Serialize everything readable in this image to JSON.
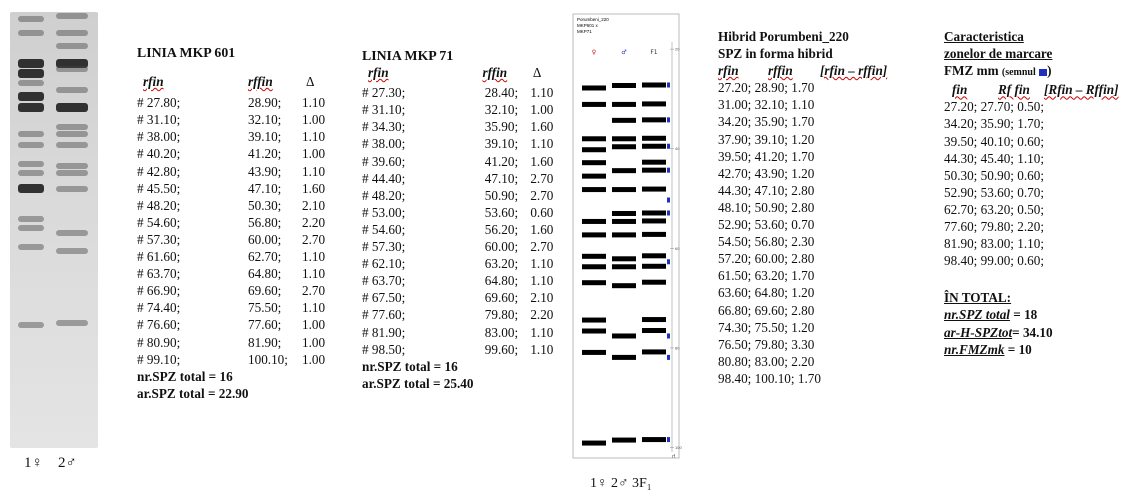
{
  "gel": {
    "lane_labels": [
      "1♀",
      "2♂"
    ]
  },
  "mkp601": {
    "title": "LINIA MKP 601",
    "headers": [
      "rfin",
      "rffin",
      "Δ"
    ],
    "rows": [
      [
        "# 27.80;",
        "28.90;",
        "1.10"
      ],
      [
        "# 31.10;",
        "32.10;",
        "1.00"
      ],
      [
        "# 38.00;",
        "39.10;",
        "1.10"
      ],
      [
        "# 40.20;",
        "41.20;",
        "1.00"
      ],
      [
        "# 42.80;",
        "43.90;",
        "1.10"
      ],
      [
        "# 45.50;",
        "47.10;",
        "1.60"
      ],
      [
        "# 48.20;",
        "50.30;",
        "2.10"
      ],
      [
        "# 54.60;",
        "56.80;",
        "2.20"
      ],
      [
        "# 57.30;",
        "60.00;",
        "2.70"
      ],
      [
        "# 61.60;",
        "62.70;",
        "1.10"
      ],
      [
        "# 63.70;",
        "64.80;",
        "1.10"
      ],
      [
        "# 66.90;",
        "69.60;",
        "2.70"
      ],
      [
        "# 74.40;",
        "75.50;",
        "1.10"
      ],
      [
        "# 76.60;",
        "77.60;",
        "1.00"
      ],
      [
        "# 80.90;",
        "81.90;",
        "1.00"
      ],
      [
        "# 99.10;",
        "100.10;",
        "1.00"
      ]
    ],
    "total1": "nr.SPZ total = 16",
    "total2": "ar.SPZ total = 22.90"
  },
  "mkp71": {
    "title": "LINIA  MKP 71",
    "headers": [
      "rfin",
      "rffin",
      "Δ"
    ],
    "rows": [
      [
        "# 27.30;",
        "28.40;",
        "1.10"
      ],
      [
        "# 31.10;",
        "32.10;",
        "1.00"
      ],
      [
        "# 34.30;",
        "35.90;",
        "1.60"
      ],
      [
        "# 38.00;",
        "39.10;",
        "1.10"
      ],
      [
        "# 39.60;",
        "41.20;",
        "1.60"
      ],
      [
        "# 44.40;",
        "47.10;",
        "2.70"
      ],
      [
        "# 48.20;",
        "50.90;",
        "2.70"
      ],
      [
        "# 53.00;",
        "53.60;",
        "0.60"
      ],
      [
        "# 54.60;",
        "56.20;",
        "1.60"
      ],
      [
        "# 57.30;",
        "60.00;",
        "2.70"
      ],
      [
        "# 62.10;",
        "63.20;",
        "1.10"
      ],
      [
        "# 63.70;",
        "64.80;",
        "1.10"
      ],
      [
        "# 67.50;",
        "69.60;",
        "2.10"
      ],
      [
        "# 77.60;",
        "79.80;",
        "2.20"
      ],
      [
        "# 81.90;",
        "83.00;",
        "1.10"
      ],
      [
        "# 98.50;",
        "99.60;",
        "1.10"
      ]
    ],
    "total1": "nr.SPZ total = 16",
    "total2": "ar.SPZ total = 25.40"
  },
  "diagram": {
    "title_lines": [
      "Porumbeni_220",
      "MKP601 x",
      "MKP71"
    ],
    "lane_marks": [
      "♀",
      "♂",
      "F1"
    ],
    "scale_ticks": [
      "20",
      "40",
      "60",
      "80",
      "100"
    ],
    "axis_label": "rf",
    "lane_labels": "1♀  2♂  3F₁",
    "lanes": [
      [
        27.8,
        31.1,
        38.0,
        40.2,
        42.8,
        45.5,
        48.2,
        54.6,
        57.3,
        61.6,
        63.7,
        66.9,
        74.4,
        76.6,
        80.9,
        99.1
      ],
      [
        27.3,
        31.1,
        34.3,
        38.0,
        39.6,
        44.4,
        48.2,
        53.0,
        54.6,
        57.3,
        62.1,
        63.7,
        67.5,
        77.6,
        81.9,
        98.5
      ],
      [
        27.2,
        31.0,
        34.2,
        37.9,
        39.5,
        42.7,
        44.3,
        48.1,
        52.9,
        54.5,
        57.2,
        61.5,
        63.6,
        66.8,
        74.3,
        76.5,
        80.8,
        98.4
      ]
    ],
    "marker_positions": [
      27.2,
      34.2,
      39.5,
      44.3,
      50.3,
      52.9,
      62.7,
      77.6,
      81.9,
      98.4
    ]
  },
  "hybrid": {
    "title1": "Hibrid Porumbeni_220",
    "title2": "SPZ in forma hibrid",
    "headers": [
      "rfin",
      "rffin",
      "[rfin – rffin]"
    ],
    "rows": [
      "27.20; 28.90; 1.70",
      "31.00; 32.10; 1.10",
      "34.20; 35.90; 1.70",
      "37.90; 39.10; 1.20",
      "39.50; 41.20; 1.70",
      "42.70; 43.90; 1.20",
      "44.30; 47.10; 2.80",
      "48.10; 50.90; 2.80",
      "52.90; 53.60; 0.70",
      "54.50; 56.80; 2.30",
      "57.20; 60.00; 2.80",
      "61.50; 63.20; 1.70",
      "63.60; 64.80; 1.20",
      "66.80; 69.60; 2.80",
      "74.30; 75.50; 1.20",
      "76.50; 79.80; 3.30",
      "80.80; 83.00; 2.20",
      "98.40; 100.10; 1.70"
    ]
  },
  "fmz": {
    "title1": "Caracteristica",
    "title2": "zonelor de marcare",
    "title3": "FMZ mm",
    "title3_note": "(semnul",
    "title3_end": ")",
    "marker_color": "#1f2fbf",
    "headers": [
      "fin",
      "Rf fin",
      "[Rfin – Rffin]"
    ],
    "rows": [
      "27.20; 27.70; 0.50;",
      "34.20; 35.90; 1.70;",
      "39.50; 40.10; 0.60;",
      "44.30; 45.40; 1.10;",
      "50.30; 50.90; 0.60;",
      "52.90; 53.60; 0.70;",
      "62.70; 63.20; 0.50;",
      "77.60; 79.80; 2.20;",
      "81.90; 83.00; 1.10;",
      "98.40; 99.00; 0.60;"
    ],
    "total_title": "ÎN TOTAL:",
    "total_lines": [
      {
        "label": "nr.SPZ total",
        "value": " = 18"
      },
      {
        "label": "ar-H-SPZtot",
        "value": "= 34.10"
      },
      {
        "label": "nr.FMZmk",
        "value": " = 10"
      }
    ]
  }
}
